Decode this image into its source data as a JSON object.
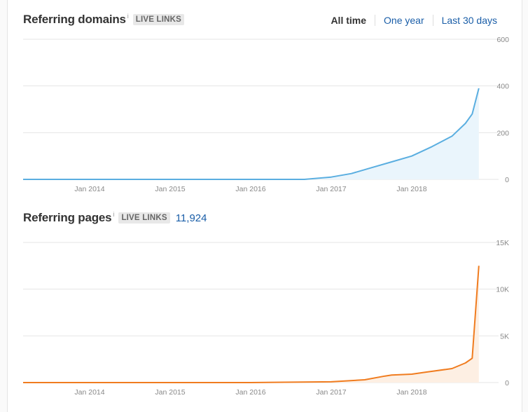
{
  "charts_meta": {
    "domains": {
      "title": "Referring domains",
      "info": "i",
      "badge": "LIVE LINKS"
    },
    "pages": {
      "title": "Referring pages",
      "info": "i",
      "badge": "LIVE LINKS",
      "count": "11,924"
    }
  },
  "tabs": [
    {
      "label": "All time",
      "active": true
    },
    {
      "label": "One year",
      "active": false
    },
    {
      "label": "Last 30 days",
      "active": false
    }
  ],
  "colors": {
    "domains_line": "#5aaee0",
    "domains_fill": "#eaf5fc",
    "pages_line": "#f07c1f",
    "pages_fill": "#fdefe3",
    "grid": "#e5e5e5",
    "link": "#1a5ea8"
  },
  "chart_data": [
    {
      "type": "area",
      "title": "Referring domains",
      "x_tick_labels": [
        "Jan 2014",
        "Jan 2015",
        "Jan 2016",
        "Jan 2017",
        "Jan 2018"
      ],
      "y_tick_labels": [
        "600",
        "400",
        "200",
        "0"
      ],
      "ylim": [
        0,
        600
      ],
      "grid": true,
      "series": [
        {
          "x": [
            "2013-01",
            "2014-01",
            "2015-01",
            "2016-01",
            "2016-09",
            "2017-01",
            "2017-04",
            "2017-07",
            "2017-10",
            "2018-01",
            "2018-04",
            "2018-07",
            "2018-09",
            "2018-10",
            "2018-11"
          ],
          "values": [
            0,
            0,
            0,
            0,
            0,
            10,
            25,
            50,
            75,
            100,
            140,
            185,
            240,
            280,
            390
          ]
        }
      ]
    },
    {
      "type": "area",
      "title": "Referring pages",
      "x_tick_labels": [
        "Jan 2014",
        "Jan 2015",
        "Jan 2016",
        "Jan 2017",
        "Jan 2018"
      ],
      "y_tick_labels": [
        "15K",
        "10K",
        "5K",
        "0"
      ],
      "ylim": [
        0,
        15000
      ],
      "grid": true,
      "series": [
        {
          "x": [
            "2013-01",
            "2014-01",
            "2015-01",
            "2016-01",
            "2017-01",
            "2017-06",
            "2017-09",
            "2017-10",
            "2018-01",
            "2018-03",
            "2018-07",
            "2018-09",
            "2018-10",
            "2018-11"
          ],
          "values": [
            0,
            0,
            0,
            0,
            80,
            300,
            700,
            800,
            900,
            1100,
            1500,
            2100,
            2600,
            12500
          ]
        }
      ]
    }
  ]
}
